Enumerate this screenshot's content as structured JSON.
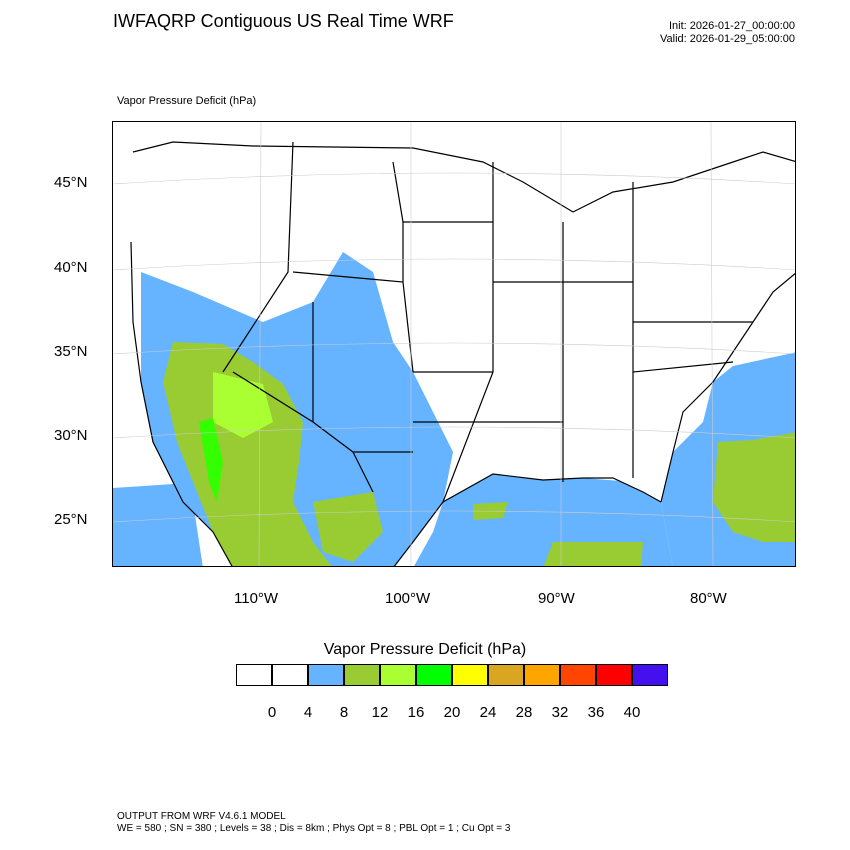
{
  "header": {
    "title": "IWFAQRP Contiguous US Real Time WRF",
    "init": "Init: 2026-01-27_00:00:00",
    "valid": "Valid: 2026-01-29_05:00:00"
  },
  "map": {
    "field_label": "Vapor Pressure Deficit   (hPa)",
    "lat_labels": [
      "45°N",
      "40°N",
      "35°N",
      "30°N",
      "25°N"
    ],
    "lon_labels": [
      "110°W",
      "100°W",
      "90°W",
      "80°W"
    ],
    "colors": {
      "ocean_blue": "#66b3ff",
      "green_8_12": "#99cc33",
      "green_12_16": "#aaff33",
      "bright_green": "#33ff00",
      "ocean": "#ffffff",
      "borders": "#000000"
    }
  },
  "colorbar": {
    "title": "Vapor Pressure Deficit  (hPa)",
    "colors": [
      "#ffffff",
      "#ffffff",
      "#66b3ff",
      "#99cc33",
      "#aaff33",
      "#00ff00",
      "#ffff00",
      "#daa520",
      "#ffa500",
      "#ff4500",
      "#ff0000",
      "#4411ee"
    ],
    "labels": [
      "0",
      "4",
      "8",
      "12",
      "16",
      "20",
      "24",
      "28",
      "32",
      "36",
      "40"
    ]
  },
  "footer": {
    "line1": "OUTPUT FROM WRF V4.6.1 MODEL",
    "line2": "WE = 580 ; SN = 380 ; Levels = 38 ; Dis = 8km ; Phys Opt = 8 ; PBL Opt = 1 ; Cu Opt = 3"
  }
}
